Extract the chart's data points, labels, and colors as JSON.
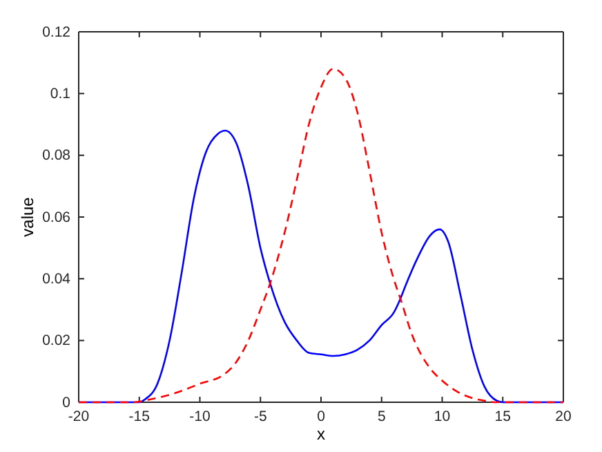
{
  "chart_data": {
    "type": "line",
    "xlabel": "x",
    "ylabel": "value",
    "xlim": [
      -20,
      20
    ],
    "xticks": [
      -20,
      -15,
      -10,
      -5,
      0,
      5,
      10,
      15,
      20
    ],
    "ylim": [
      0,
      0.12
    ],
    "yticks": [
      0,
      0.02,
      0.04,
      0.06,
      0.08,
      0.1,
      0.12
    ],
    "grid": false,
    "series": [
      {
        "color": "#0000ff",
        "line_style": "solid",
        "x": [
          -20,
          -17,
          -15,
          -14.5,
          -13.5,
          -12.5,
          -11.5,
          -10.5,
          -9.5,
          -8.5,
          -7.9,
          -7,
          -6,
          -5,
          -4.2,
          -3,
          -2,
          -1,
          0,
          1,
          2,
          3,
          4,
          5,
          6,
          6.6,
          7,
          8,
          9,
          9.8,
          10.5,
          11.5,
          12.5,
          13.5,
          14.5,
          15,
          17,
          20
        ],
        "values": [
          0,
          0,
          0,
          0.001,
          0.006,
          0.02,
          0.042,
          0.066,
          0.081,
          0.087,
          0.088,
          0.084,
          0.07,
          0.05,
          0.0385,
          0.026,
          0.02,
          0.016,
          0.0155,
          0.015,
          0.0155,
          0.017,
          0.02,
          0.025,
          0.029,
          0.034,
          0.038,
          0.047,
          0.054,
          0.056,
          0.052,
          0.035,
          0.017,
          0.005,
          0.0005,
          0,
          0,
          0
        ]
      },
      {
        "color": "#ff0000",
        "line_style": "dashed",
        "x": [
          -20,
          -17,
          -15.5,
          -14,
          -12,
          -10,
          -8,
          -7,
          -6,
          -5,
          -4.2,
          -3,
          -2,
          -1,
          0,
          1,
          2,
          3,
          4,
          5,
          6,
          6.6,
          7.5,
          9,
          10,
          11,
          12,
          13.5,
          14.5,
          17,
          20
        ],
        "values": [
          0,
          0,
          0,
          0.001,
          0.003,
          0.006,
          0.009,
          0.013,
          0.02,
          0.03,
          0.0385,
          0.055,
          0.072,
          0.09,
          0.102,
          0.108,
          0.105,
          0.094,
          0.075,
          0.055,
          0.04,
          0.033,
          0.022,
          0.011,
          0.007,
          0.004,
          0.002,
          0.0005,
          0,
          0,
          0
        ]
      }
    ]
  }
}
